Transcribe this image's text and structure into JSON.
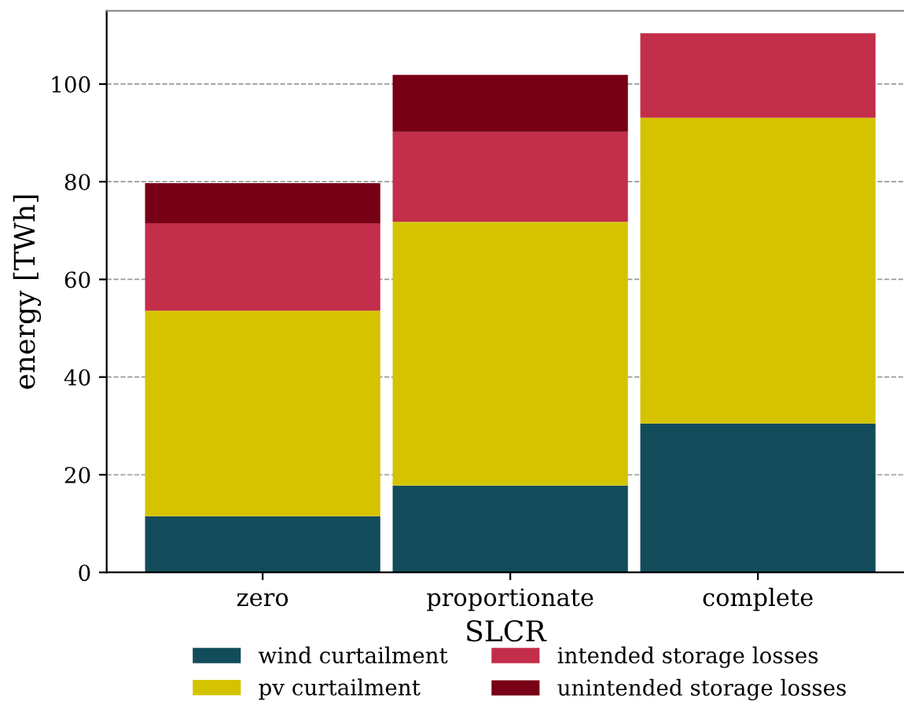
{
  "chart_data": {
    "type": "bar",
    "stacked": true,
    "xlabel": "SLCR",
    "ylabel": "energy [TWh]",
    "categories": [
      "zero",
      "proportionate",
      "complete"
    ],
    "series": [
      {
        "name": "wind curtailment",
        "color": "#124c5a",
        "values": [
          11.5,
          17.8,
          30.5
        ]
      },
      {
        "name": "pv curtailment",
        "color": "#d5c300",
        "values": [
          42.1,
          54.0,
          62.6
        ]
      },
      {
        "name": "intended storage losses",
        "color": "#c32e4a",
        "values": [
          17.9,
          18.4,
          17.3
        ]
      },
      {
        "name": "unintended storage losses",
        "color": "#780016",
        "values": [
          8.2,
          11.7,
          0
        ]
      }
    ],
    "ylim": [
      0,
      115
    ],
    "yticks": [
      0,
      20,
      40,
      60,
      80,
      100
    ],
    "grid": "y",
    "legend": "bottom"
  }
}
